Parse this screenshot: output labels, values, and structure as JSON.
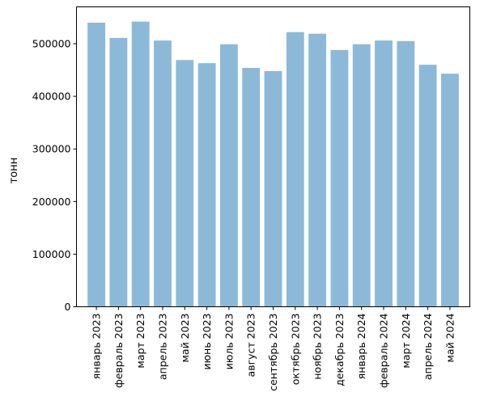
{
  "chart_data": {
    "type": "bar",
    "title": "",
    "xlabel": "",
    "ylabel": "тонн",
    "ylim": [
      0,
      570000
    ],
    "yticks": [
      0,
      100000,
      200000,
      300000,
      400000,
      500000
    ],
    "ytick_labels": [
      "0",
      "100000",
      "200000",
      "300000",
      "400000",
      "500000"
    ],
    "grid": false,
    "bar_color": "#8db9d9",
    "categories": [
      "январь 2023",
      "февраль 2023",
      "март 2023",
      "апрель 2023",
      "май 2023",
      "июнь 2023",
      "июль 2023",
      "август 2023",
      "сентябрь 2023",
      "октябрь 2023",
      "ноябрь 2023",
      "декабрь 2023",
      "январь 2024",
      "февраль 2024",
      "март 2024",
      "апрель 2024",
      "май 2024"
    ],
    "values": [
      540000,
      511000,
      542000,
      506000,
      469000,
      463000,
      499000,
      454000,
      448000,
      522000,
      519000,
      488000,
      499000,
      506000,
      505000,
      460000,
      443000
    ]
  }
}
